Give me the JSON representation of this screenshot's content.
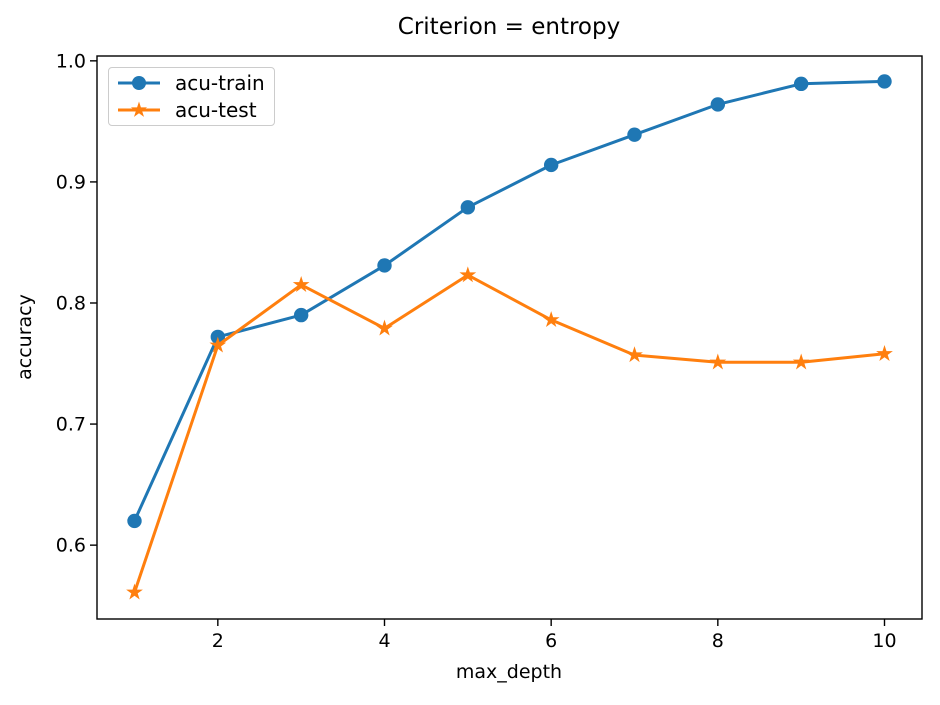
{
  "chart_data": {
    "type": "line",
    "title": "Criterion = entropy",
    "xlabel": "max_depth",
    "ylabel": "accuracy",
    "x": [
      1,
      2,
      3,
      4,
      5,
      6,
      7,
      8,
      9,
      10
    ],
    "series": [
      {
        "name": "acu-train",
        "color": "#1f77b4",
        "marker": "circle",
        "values": [
          0.62,
          0.772,
          0.79,
          0.831,
          0.879,
          0.914,
          0.939,
          0.964,
          0.981,
          0.983
        ]
      },
      {
        "name": "acu-test",
        "color": "#ff7f0e",
        "marker": "star",
        "values": [
          0.561,
          0.765,
          0.815,
          0.779,
          0.823,
          0.786,
          0.757,
          0.751,
          0.751,
          0.758
        ]
      }
    ],
    "xticks": [
      {
        "label": "2",
        "value": 2
      },
      {
        "label": "4",
        "value": 4
      },
      {
        "label": "6",
        "value": 6
      },
      {
        "label": "8",
        "value": 8
      },
      {
        "label": "10",
        "value": 10
      }
    ],
    "yticks": [
      {
        "label": "1.0",
        "value": 1.0
      },
      {
        "label": "0.9",
        "value": 0.9
      },
      {
        "label": "0.8",
        "value": 0.8
      },
      {
        "label": "0.7",
        "value": 0.7
      },
      {
        "label": "0.6",
        "value": 0.6
      }
    ],
    "xlim": [
      0.55,
      10.45
    ],
    "ylim": [
      0.539,
      1.004
    ],
    "grid": false,
    "legend_position": "upper left",
    "axis_color": "#000000",
    "tick_label_color": "#000000",
    "legend_border_color": "#cccccc",
    "background_color": "#ffffff"
  }
}
